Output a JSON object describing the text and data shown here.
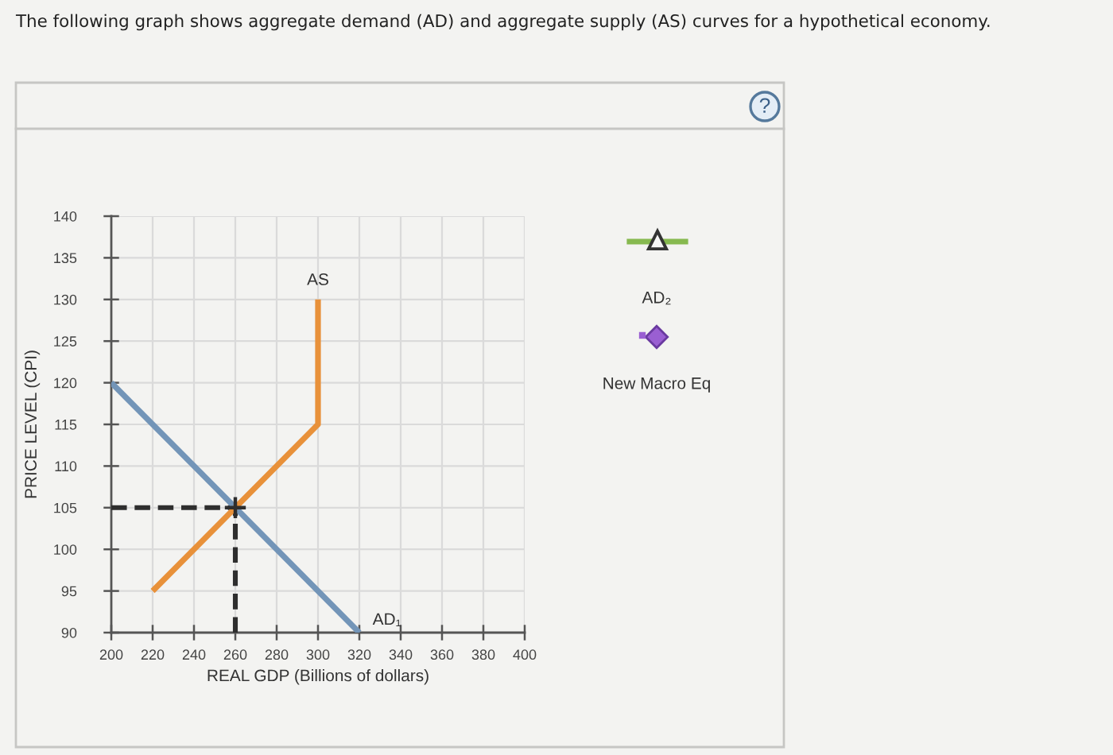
{
  "chart_data": {
    "type": "line",
    "title": "The following graph shows aggregate demand (AD) and aggregate supply (AS) curves for a hypothetical economy.",
    "xlabel": "REAL GDP (Billions of dollars)",
    "ylabel": "PRICE LEVEL (CPI)",
    "xlim": [
      200,
      400
    ],
    "ylim": [
      90,
      140
    ],
    "xticks": [
      200,
      220,
      240,
      260,
      280,
      300,
      320,
      340,
      360,
      380,
      400
    ],
    "yticks": [
      90,
      95,
      100,
      105,
      110,
      115,
      120,
      125,
      130,
      135,
      140
    ],
    "grid": true,
    "series": [
      {
        "name": "AD₁",
        "color": "#7395b8",
        "x": [
          200,
          320
        ],
        "values": [
          120,
          90
        ]
      },
      {
        "name": "AS",
        "color": "#e8913a",
        "x": [
          220,
          300,
          300
        ],
        "values": [
          95,
          115,
          130
        ]
      },
      {
        "color": "#2e2e2e",
        "line_style": "dashed",
        "x": [
          200,
          260
        ],
        "values": [
          105,
          105
        ]
      },
      {
        "color": "#2e2e2e",
        "line_style": "dashed",
        "x": [
          260,
          260
        ],
        "values": [
          90,
          105
        ]
      },
      {
        "type": "scatter",
        "color": "#2e2e2e",
        "marker": "cross",
        "x": [
          260
        ],
        "values": [
          105
        ]
      }
    ],
    "annotations": [
      "AD₂",
      "New Macro Eq",
      "?"
    ]
  }
}
